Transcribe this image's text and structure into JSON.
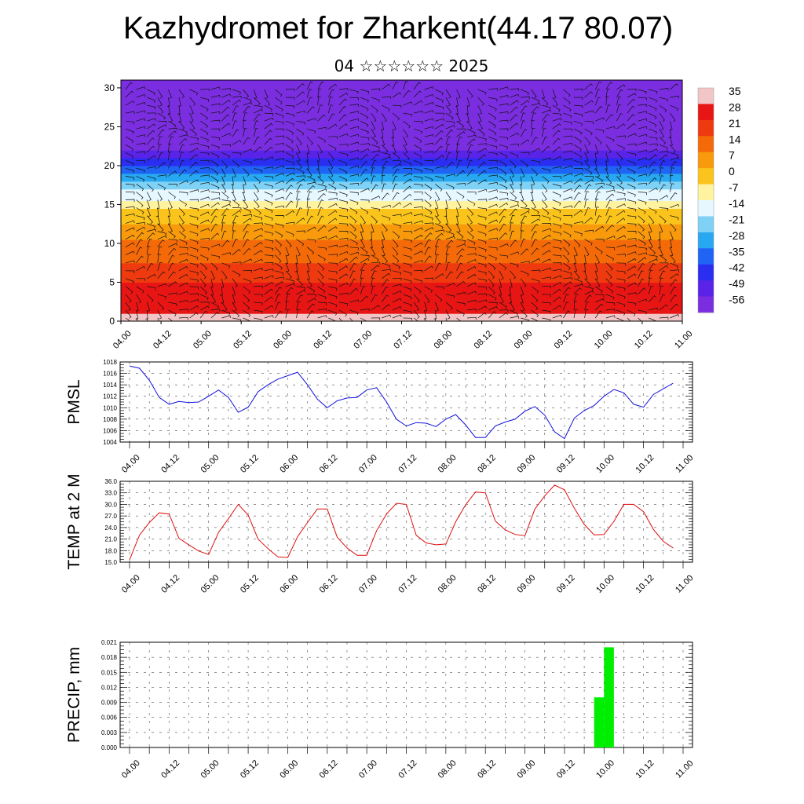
{
  "header": {
    "title": "Kazhydromet for Zharkent(44.17 80.07)",
    "subtitle": "04 ☆☆☆☆☆☆ 2025"
  },
  "chart_data": [
    {
      "type": "heatmap",
      "title": "",
      "x_ticks": [
        "04.00",
        "04.12",
        "05.00",
        "05.12",
        "06.00",
        "06.12",
        "07.00",
        "07.12",
        "08.00",
        "08.12",
        "09.00",
        "09.12",
        "10.00",
        "10.12",
        "11.00"
      ],
      "y_ticks": [
        "0",
        "5",
        "10",
        "15",
        "20",
        "25",
        "30"
      ],
      "ylim": [
        0,
        31
      ],
      "colorbar": {
        "labels": [
          "35",
          "28",
          "21",
          "14",
          "7",
          "0",
          "-7",
          "-14",
          "-21",
          "-28",
          "-35",
          "-42",
          "-49",
          "-56"
        ],
        "colors": [
          "#f2c6c6",
          "#e81515",
          "#ee3a0e",
          "#f56a08",
          "#f89a0c",
          "#fbc41c",
          "#fff3a0",
          "#e6f7ff",
          "#7fd2f5",
          "#27a8f0",
          "#1f64f5",
          "#2a2ef0",
          "#5a23e8",
          "#7b2ee0"
        ]
      },
      "level_temps": [
        {
          "z": 0,
          "t": 30
        },
        {
          "z": 5,
          "t": 22
        },
        {
          "z": 10,
          "t": 10
        },
        {
          "z": 14,
          "t": -2
        },
        {
          "z": 16,
          "t": -12
        },
        {
          "z": 19,
          "t": -30
        },
        {
          "z": 22,
          "t": -50
        },
        {
          "z": 24,
          "t": -58
        },
        {
          "z": 27,
          "t": -62
        },
        {
          "z": 31,
          "t": -66
        }
      ],
      "wind_barbs": true
    },
    {
      "type": "line",
      "ylabel": "PMSL",
      "x_ticks": [
        "04.00",
        "04.12",
        "05.00",
        "05.12",
        "06.00",
        "06.12",
        "07.00",
        "07.12",
        "08.00",
        "08.12",
        "09.00",
        "09.12",
        "10.00",
        "10.12",
        "11.00"
      ],
      "y_ticks": [
        "1004",
        "1006",
        "1008",
        "1010",
        "1012",
        "1014",
        "1016",
        "1018"
      ],
      "ylim": [
        1004,
        1018
      ],
      "grid": true,
      "color": "#1010dd",
      "x": [
        0,
        3,
        6,
        9,
        12,
        15,
        18,
        21,
        24,
        27,
        30,
        33,
        36,
        39,
        42,
        45,
        48,
        51,
        54,
        57,
        60,
        63,
        66,
        69,
        72,
        75,
        78,
        81,
        84,
        87,
        90,
        93,
        96,
        99,
        102,
        105,
        108,
        111,
        114,
        117,
        120,
        123,
        126,
        129,
        132,
        135,
        138,
        141,
        144,
        147,
        150,
        153,
        156,
        159,
        162,
        165
      ],
      "values": [
        1017.3,
        1016.9,
        1014.8,
        1011.8,
        1010.6,
        1011.1,
        1010.9,
        1011.0,
        1012.0,
        1013.1,
        1011.8,
        1009.2,
        1010.1,
        1012.8,
        1014.0,
        1015.0,
        1015.6,
        1016.2,
        1014.0,
        1011.5,
        1010.0,
        1011.2,
        1011.7,
        1011.8,
        1013.1,
        1013.5,
        1011.0,
        1008.0,
        1006.8,
        1007.4,
        1007.3,
        1006.7,
        1008.0,
        1008.8,
        1007.0,
        1004.8,
        1004.8,
        1006.8,
        1007.5,
        1008.0,
        1009.4,
        1010.2,
        1008.7,
        1005.8,
        1004.6,
        1008.2,
        1009.5,
        1010.4,
        1012.0,
        1013.2,
        1012.6,
        1010.6,
        1010.1,
        1012.3,
        1013.3,
        1014.3
      ]
    },
    {
      "type": "line",
      "ylabel": "TEMP at 2 M",
      "x_ticks": [
        "04.00",
        "04.12",
        "05.00",
        "05.12",
        "06.00",
        "06.12",
        "07.00",
        "07.12",
        "08.00",
        "08.12",
        "09.00",
        "09.12",
        "10.00",
        "10.12",
        "11.00"
      ],
      "y_ticks": [
        "15.0",
        "18.0",
        "21.0",
        "24.0",
        "27.0",
        "30.0",
        "33.0",
        "36.0"
      ],
      "ylim": [
        15,
        36
      ],
      "grid": true,
      "color": "#dd1010",
      "x": [
        0,
        3,
        6,
        9,
        12,
        15,
        18,
        21,
        24,
        27,
        30,
        33,
        36,
        39,
        42,
        45,
        48,
        51,
        54,
        57,
        60,
        63,
        66,
        69,
        72,
        75,
        78,
        81,
        84,
        87,
        90,
        93,
        96,
        99,
        102,
        105,
        108,
        111,
        114,
        117,
        120,
        123,
        126,
        129,
        132,
        135,
        138,
        141,
        144,
        147,
        150,
        153,
        156,
        159,
        162,
        165
      ],
      "values": [
        15.6,
        22.0,
        25.3,
        27.8,
        27.5,
        21.2,
        19.5,
        17.9,
        17.0,
        22.7,
        26.3,
        30.0,
        27.2,
        21.0,
        18.5,
        16.4,
        16.2,
        21.6,
        25.3,
        28.8,
        28.8,
        21.5,
        18.7,
        16.8,
        16.8,
        23.2,
        27.5,
        30.3,
        30.0,
        22.0,
        20.0,
        19.5,
        19.7,
        25.5,
        29.9,
        33.2,
        33.0,
        25.7,
        23.4,
        22.2,
        21.9,
        28.8,
        32.2,
        35.0,
        33.8,
        29.0,
        24.8,
        22.1,
        22.2,
        25.6,
        30.0,
        30.0,
        28.1,
        23.5,
        20.4,
        18.7
      ]
    },
    {
      "type": "bar",
      "ylabel": "PRECIP, mm",
      "x_ticks": [
        "04.00",
        "04.12",
        "05.00",
        "05.12",
        "06.00",
        "06.12",
        "07.00",
        "07.12",
        "08.00",
        "08.12",
        "09.00",
        "09.12",
        "10.00",
        "10.12",
        "11.00"
      ],
      "y_ticks": [
        "0.000",
        "0.003",
        "0.006",
        "0.009",
        "0.012",
        "0.015",
        "0.018",
        "0.021"
      ],
      "ylim": [
        0,
        0.021
      ],
      "grid": true,
      "color": "#00ee00",
      "bars": [
        {
          "x_start": 141,
          "x_end": 144,
          "value": 0.01
        },
        {
          "x_start": 144,
          "x_end": 147,
          "value": 0.02
        }
      ]
    }
  ]
}
